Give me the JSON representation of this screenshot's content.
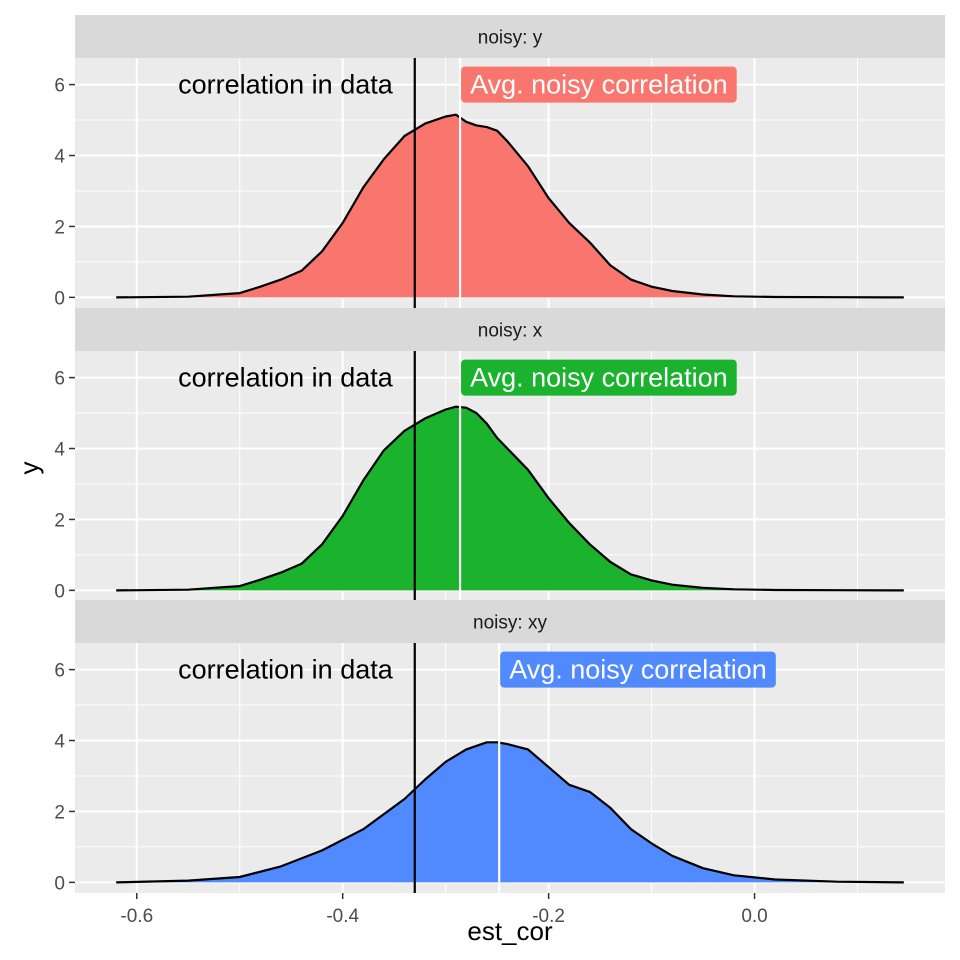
{
  "chart_data": {
    "type": "area",
    "xlabel": "est_cor",
    "ylabel": "y",
    "xlim": [
      -0.66,
      0.185
    ],
    "ylim": [
      -0.3,
      6.75
    ],
    "x_ticks": [
      -0.6,
      -0.4,
      -0.2,
      0.0
    ],
    "x_tick_labels": [
      "-0.6",
      "-0.4",
      "-0.2",
      "0.0"
    ],
    "y_ticks": [
      0,
      2,
      4,
      6
    ],
    "y_tick_labels": [
      "0",
      "2",
      "4",
      "6"
    ],
    "data_correlation": -0.33,
    "data_correlation_label": "correlation in data",
    "panels": [
      {
        "strip": "noisy: y",
        "fill": "#F8766D",
        "avg_correlation": -0.286,
        "avg_label": "Avg. noisy correlation",
        "density": {
          "x": [
            -0.62,
            -0.55,
            -0.52,
            -0.5,
            -0.48,
            -0.46,
            -0.44,
            -0.42,
            -0.4,
            -0.38,
            -0.36,
            -0.34,
            -0.32,
            -0.3,
            -0.29,
            -0.28,
            -0.27,
            -0.26,
            -0.25,
            -0.24,
            -0.22,
            -0.2,
            -0.18,
            -0.16,
            -0.14,
            -0.12,
            -0.1,
            -0.08,
            -0.05,
            -0.02,
            0.02,
            0.08,
            0.145
          ],
          "y": [
            0,
            0.02,
            0.08,
            0.12,
            0.3,
            0.5,
            0.75,
            1.3,
            2.1,
            3.1,
            3.9,
            4.55,
            4.9,
            5.1,
            5.15,
            4.95,
            4.85,
            4.8,
            4.7,
            4.4,
            3.7,
            2.8,
            2.1,
            1.55,
            0.9,
            0.5,
            0.3,
            0.18,
            0.08,
            0.03,
            0.01,
            0.005,
            0
          ]
        }
      },
      {
        "strip": "noisy: x",
        "fill": "#1BB22E",
        "avg_correlation": -0.286,
        "avg_label": "Avg. noisy correlation",
        "density": {
          "x": [
            -0.62,
            -0.55,
            -0.52,
            -0.5,
            -0.48,
            -0.46,
            -0.44,
            -0.42,
            -0.4,
            -0.38,
            -0.36,
            -0.34,
            -0.32,
            -0.3,
            -0.29,
            -0.28,
            -0.27,
            -0.26,
            -0.25,
            -0.24,
            -0.22,
            -0.2,
            -0.18,
            -0.16,
            -0.14,
            -0.12,
            -0.1,
            -0.08,
            -0.05,
            -0.02,
            0.02,
            0.08,
            0.145
          ],
          "y": [
            0,
            0.02,
            0.08,
            0.12,
            0.3,
            0.5,
            0.75,
            1.3,
            2.1,
            3.1,
            3.95,
            4.5,
            4.85,
            5.1,
            5.18,
            5.15,
            5.0,
            4.7,
            4.3,
            4.0,
            3.4,
            2.6,
            1.9,
            1.3,
            0.8,
            0.45,
            0.28,
            0.16,
            0.07,
            0.03,
            0.01,
            0.005,
            0
          ]
        }
      },
      {
        "strip": "noisy: xy",
        "fill": "#518AFF",
        "avg_correlation": -0.248,
        "avg_label": "Avg. noisy correlation",
        "density": {
          "x": [
            -0.62,
            -0.55,
            -0.5,
            -0.46,
            -0.42,
            -0.38,
            -0.34,
            -0.32,
            -0.3,
            -0.28,
            -0.26,
            -0.25,
            -0.24,
            -0.22,
            -0.2,
            -0.18,
            -0.16,
            -0.14,
            -0.12,
            -0.1,
            -0.08,
            -0.05,
            -0.02,
            0.02,
            0.08,
            0.145
          ],
          "y": [
            0,
            0.05,
            0.15,
            0.45,
            0.9,
            1.5,
            2.35,
            2.9,
            3.4,
            3.75,
            3.95,
            3.95,
            3.9,
            3.75,
            3.25,
            2.75,
            2.55,
            2.1,
            1.5,
            1.1,
            0.75,
            0.4,
            0.2,
            0.08,
            0.02,
            0
          ]
        }
      }
    ]
  },
  "colors": {
    "panel_background": "#EBEBEB",
    "strip_background": "#D9D9D9",
    "grid": "#FFFFFF",
    "line": "#000000"
  }
}
